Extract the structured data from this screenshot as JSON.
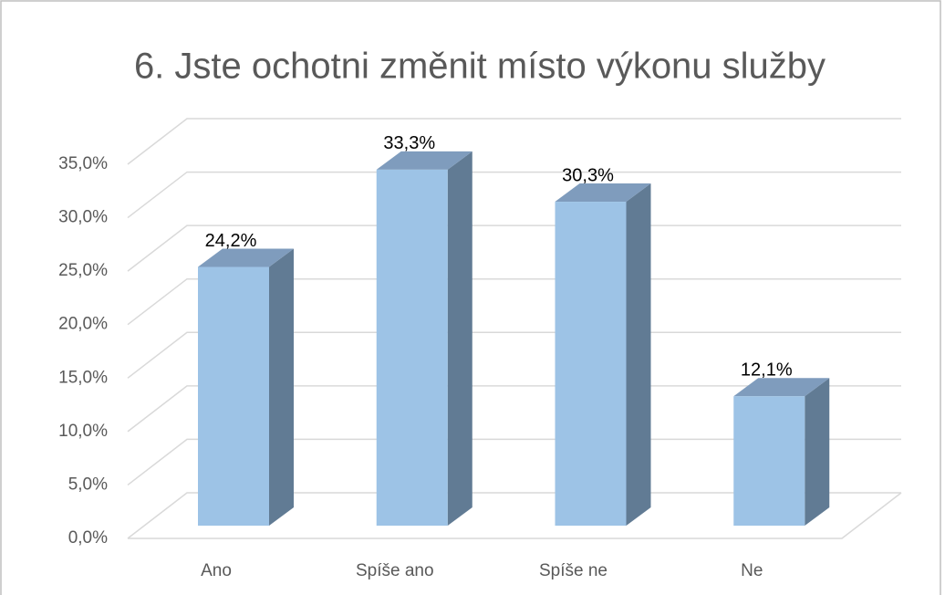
{
  "chart_data": {
    "type": "bar3d",
    "title": "6. Jste ochotni změnit místo výkonu služby",
    "categories": [
      "Ano",
      "Spíše ano",
      "Spíše ne",
      "Ne"
    ],
    "values": [
      24.2,
      33.3,
      30.3,
      12.1
    ],
    "value_labels": [
      "24,2%",
      "33,3%",
      "30,3%",
      "12,1%"
    ],
    "color": "#9dc3e6",
    "ylim": [
      0,
      35
    ],
    "yticks": [
      {
        "value": 0,
        "label": "0,0%"
      },
      {
        "value": 5,
        "label": "5,0%"
      },
      {
        "value": 10,
        "label": "10,0%"
      },
      {
        "value": 15,
        "label": "15,0%"
      },
      {
        "value": 20,
        "label": "20,0%"
      },
      {
        "value": 25,
        "label": "25,0%"
      },
      {
        "value": 30,
        "label": "30,0%"
      },
      {
        "value": 35,
        "label": "35,0%"
      }
    ],
    "grid": true
  }
}
